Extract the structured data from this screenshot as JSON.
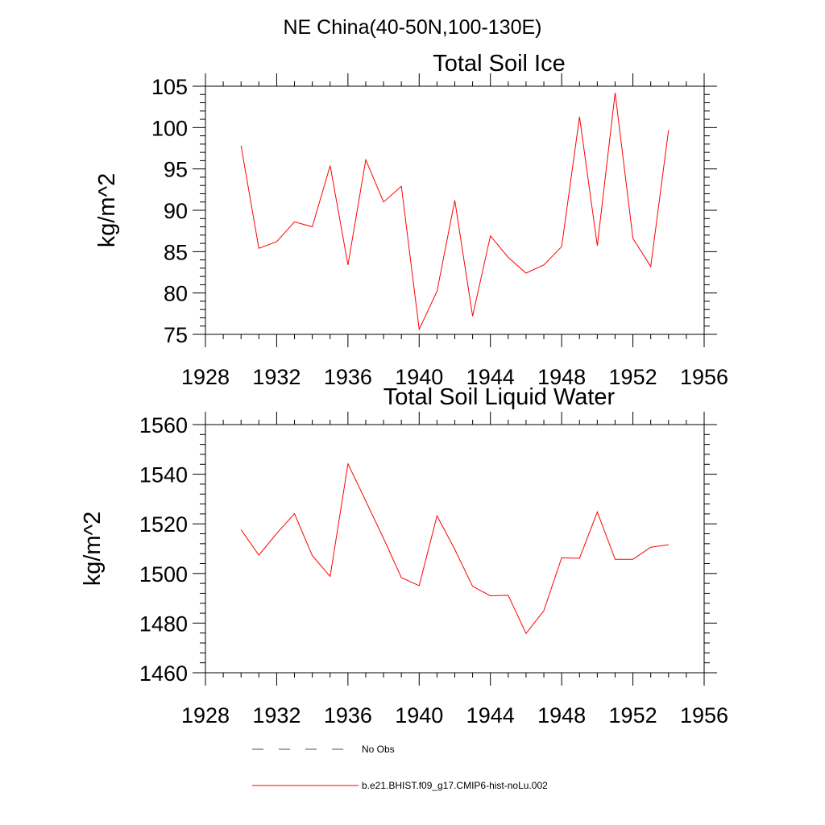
{
  "page_title": "NE China(40-50N,100-130E)",
  "colors": {
    "series": "#ff0000",
    "obs": "#3b4a7a",
    "axis": "#000000"
  },
  "legend": [
    {
      "label": "No Obs",
      "style": "dashed",
      "color": "#3b4a7a"
    },
    {
      "label": "b.e21.BHIST.f09_g17.CMIP6-hist-noLu.002",
      "style": "solid",
      "color": "#ff0000"
    }
  ],
  "chart_data": [
    {
      "type": "line",
      "title": "Total Soil Ice",
      "xlabel": "",
      "ylabel": "kg/m^2",
      "xlim": [
        1928,
        1956
      ],
      "ylim": [
        75,
        105
      ],
      "xticks": [
        1928,
        1932,
        1936,
        1940,
        1944,
        1948,
        1952,
        1956
      ],
      "yticks": [
        75,
        80,
        85,
        90,
        95,
        100,
        105
      ],
      "grid": false,
      "x": [
        1930,
        1931,
        1932,
        1933,
        1934,
        1935,
        1936,
        1937,
        1938,
        1939,
        1940,
        1941,
        1942,
        1943,
        1944,
        1945,
        1946,
        1947,
        1948,
        1949,
        1950,
        1951,
        1952,
        1953,
        1954
      ],
      "series": [
        {
          "name": "b.e21.BHIST.f09_g17.CMIP6-hist-noLu.002",
          "values": [
            97.8,
            85.4,
            86.2,
            88.6,
            88.0,
            95.4,
            83.4,
            96.1,
            91.0,
            92.9,
            75.6,
            80.2,
            91.2,
            77.2,
            86.9,
            84.3,
            82.4,
            83.4,
            85.6,
            101.3,
            85.7,
            104.2,
            86.6,
            83.2,
            99.7
          ]
        }
      ]
    },
    {
      "type": "line",
      "title": "Total Soil Liquid Water",
      "xlabel": "",
      "ylabel": "kg/m^2",
      "xlim": [
        1928,
        1956
      ],
      "ylim": [
        1460,
        1560
      ],
      "xticks": [
        1928,
        1932,
        1936,
        1940,
        1944,
        1948,
        1952,
        1956
      ],
      "yticks": [
        1460,
        1480,
        1500,
        1520,
        1540,
        1560
      ],
      "grid": false,
      "x": [
        1930,
        1931,
        1932,
        1933,
        1934,
        1935,
        1936,
        1937,
        1938,
        1939,
        1940,
        1941,
        1942,
        1943,
        1944,
        1945,
        1946,
        1947,
        1948,
        1949,
        1950,
        1951,
        1952,
        1953,
        1954
      ],
      "series": [
        {
          "name": "b.e21.BHIST.f09_g17.CMIP6-hist-noLu.002",
          "values": [
            1517.6,
            1507.4,
            1516.1,
            1524.1,
            1507.2,
            1498.8,
            1544.2,
            1529.2,
            1514.1,
            1498.3,
            1495.1,
            1523.2,
            1509.7,
            1494.8,
            1491.0,
            1491.2,
            1475.8,
            1485.0,
            1506.3,
            1506.1,
            1524.8,
            1505.7,
            1505.7,
            1510.6,
            1511.6
          ]
        }
      ]
    }
  ]
}
